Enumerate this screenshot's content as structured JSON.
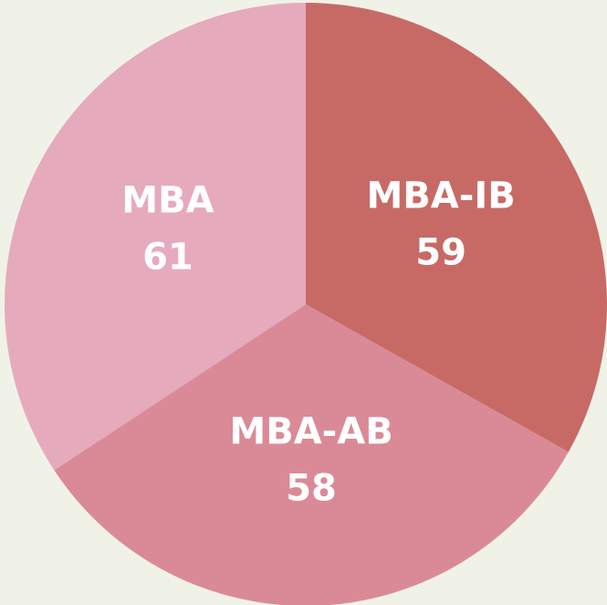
{
  "chart_data": {
    "type": "pie",
    "categories": [
      "MBA-IB",
      "MBA-AB",
      "MBA"
    ],
    "values": [
      59,
      58,
      61
    ],
    "colors": [
      "#c76a66",
      "#da8a96",
      "#e6aabd"
    ]
  }
}
